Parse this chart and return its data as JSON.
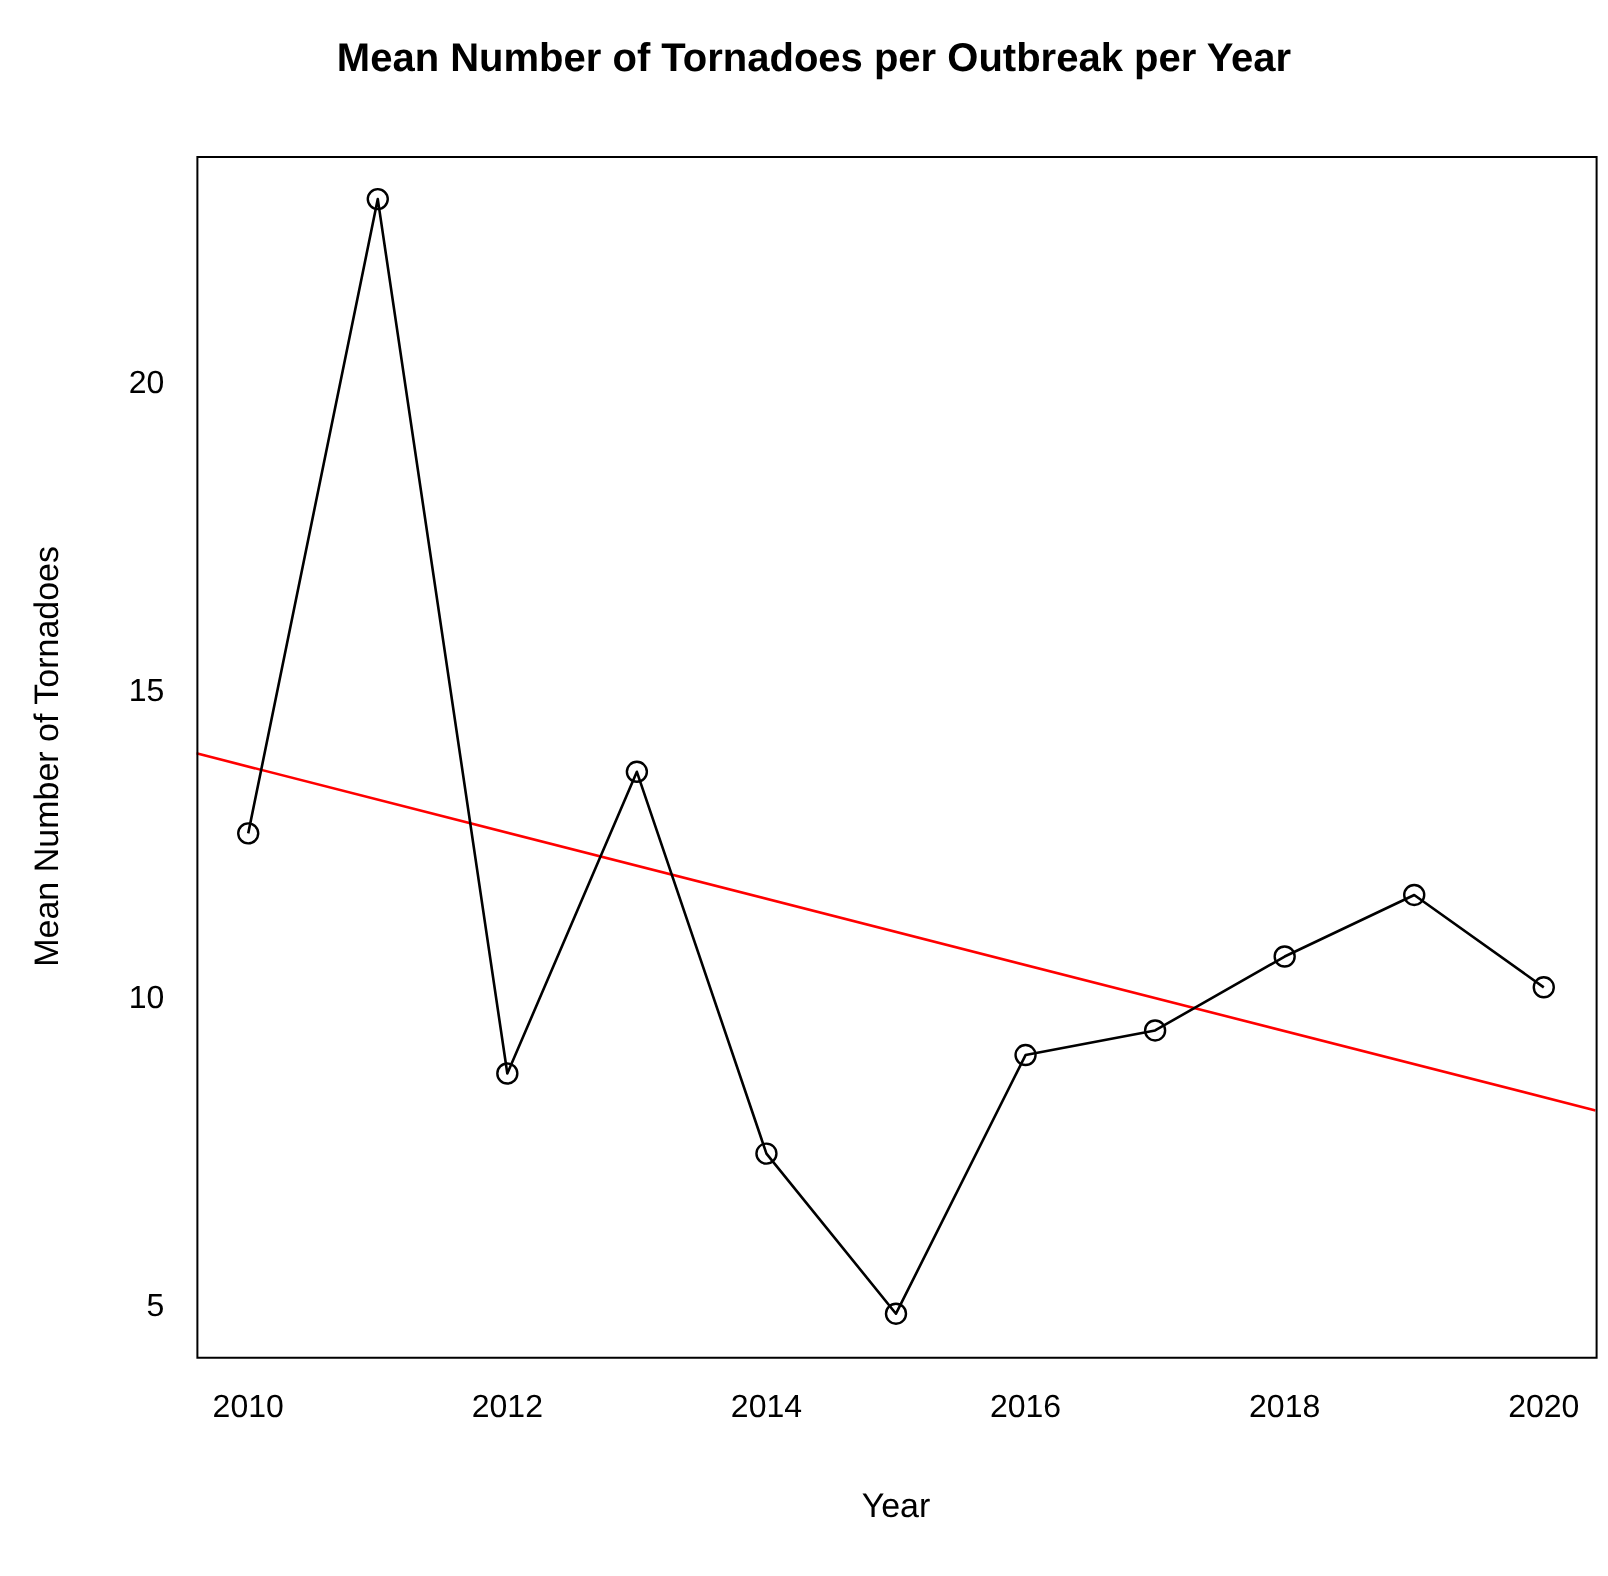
{
  "chart_data": {
    "type": "line",
    "title": "Mean Number of Tornadoes per Outbreak per Year",
    "xlabel": "Year",
    "ylabel": "Mean Number of Tornadoes",
    "x": [
      2010,
      2011,
      2012,
      2013,
      2014,
      2015,
      2016,
      2017,
      2018,
      2019,
      2020
    ],
    "series": [
      {
        "color": "#000000",
        "values": [
          12.7,
          23.0,
          8.8,
          13.7,
          7.5,
          4.9,
          9.1,
          9.5,
          10.7,
          11.7,
          10.2
        ],
        "marker": "circle"
      },
      {
        "type": "line",
        "color": "#ff0000",
        "x": [
          2009.6,
          2020.4
        ],
        "values": [
          14.0,
          8.2
        ],
        "marker": "none"
      }
    ],
    "xlim": [
      2009.6,
      2020.4
    ],
    "xticks": [
      2010,
      2012,
      2014,
      2016,
      2018,
      2020
    ],
    "ylim": [
      4.2,
      23.7
    ],
    "yticks": [
      5,
      10,
      15,
      20
    ],
    "grid": false,
    "legend": false
  }
}
